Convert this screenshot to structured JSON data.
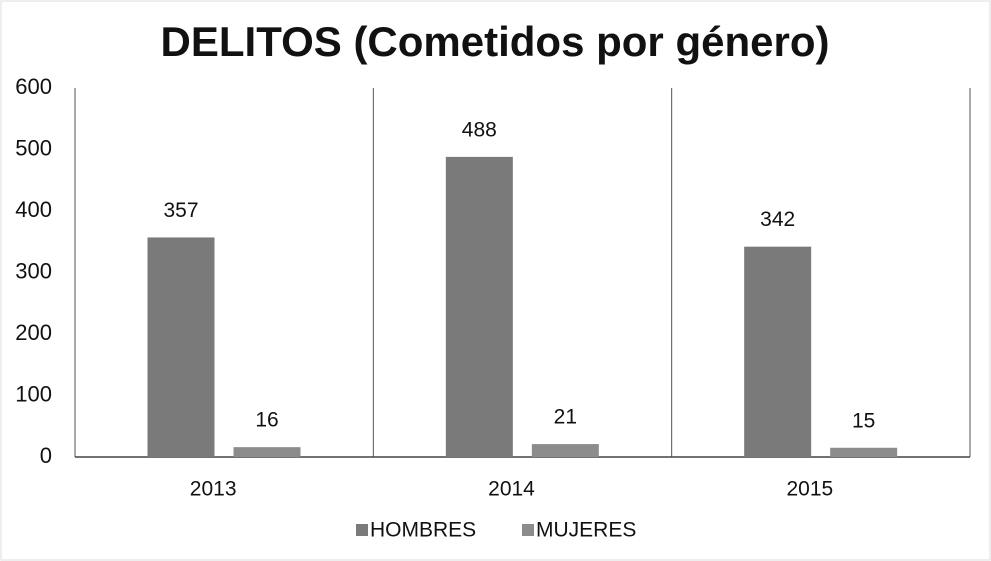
{
  "chart_data": {
    "type": "bar",
    "title": "DELITOS (Cometidos por género)",
    "categories": [
      "2013",
      "2014",
      "2015"
    ],
    "series": [
      {
        "name": "HOMBRES",
        "color": "#7a7a7a",
        "values": [
          357,
          488,
          342
        ]
      },
      {
        "name": "MUJERES",
        "color": "#8c8c8c",
        "values": [
          16,
          21,
          15
        ]
      }
    ],
    "ylim": [
      0,
      600
    ],
    "yticks": [
      0,
      100,
      200,
      300,
      400,
      500,
      600
    ],
    "grid": false,
    "legend": "bottom"
  }
}
